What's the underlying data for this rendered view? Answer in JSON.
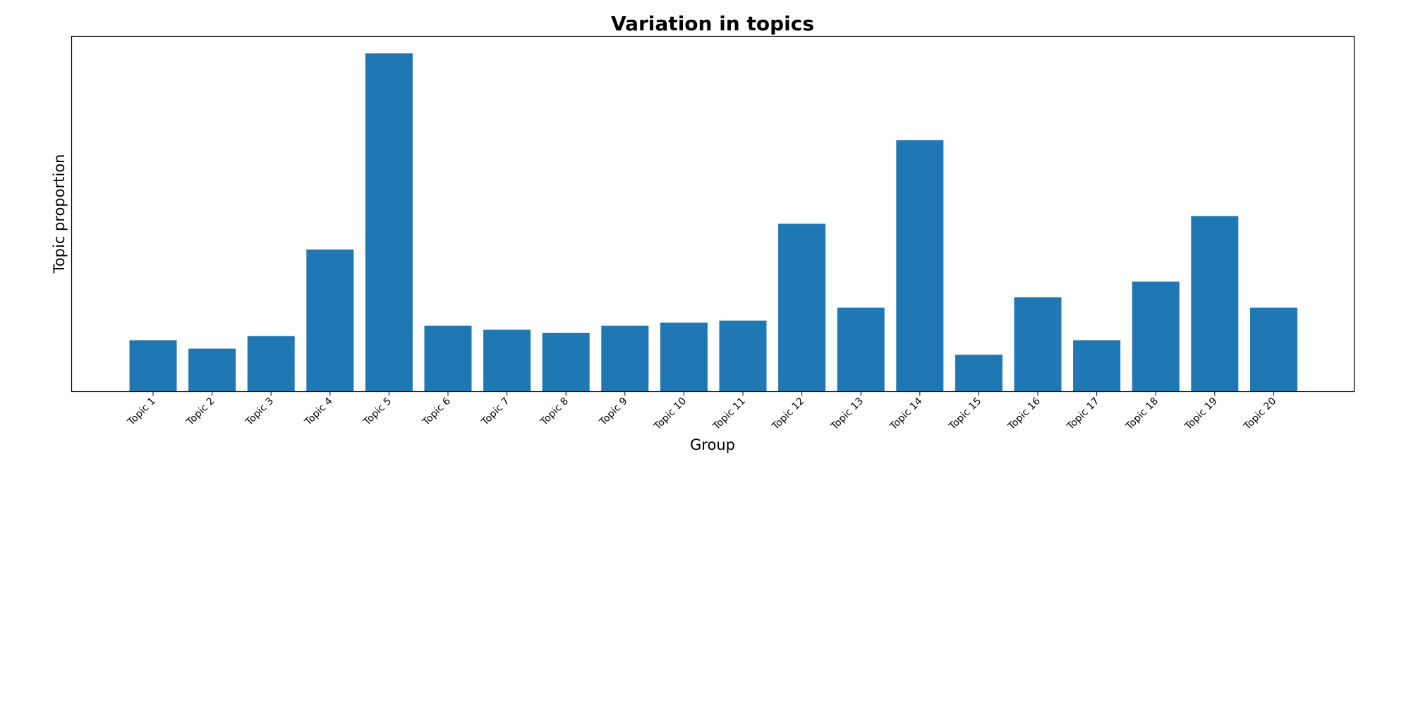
{
  "chart_data": {
    "type": "bar",
    "title": "Variation in topics",
    "xlabel": "Group",
    "ylabel": "Topic proportion",
    "categories": [
      "Topic 1",
      "Topic 2",
      "Topic 3",
      "Topic 4",
      "Topic 5",
      "Topic 6",
      "Topic 7",
      "Topic 8",
      "Topic 9",
      "Topic 10",
      "Topic 11",
      "Topic 12",
      "Topic 13",
      "Topic 14",
      "Topic 15",
      "Topic 16",
      "Topic 17",
      "Topic 18",
      "Topic 19",
      "Topic 20"
    ],
    "values": [
      0.152,
      0.127,
      0.164,
      0.42,
      1.0,
      0.195,
      0.183,
      0.174,
      0.195,
      0.204,
      0.21,
      0.496,
      0.248,
      0.743,
      0.109,
      0.279,
      0.152,
      0.325,
      0.519,
      0.248
    ],
    "ylim": [
      0,
      1.05
    ],
    "y_ticks_visible": false,
    "grid": false,
    "legend": "none",
    "bar_color": "#1f77b4"
  }
}
